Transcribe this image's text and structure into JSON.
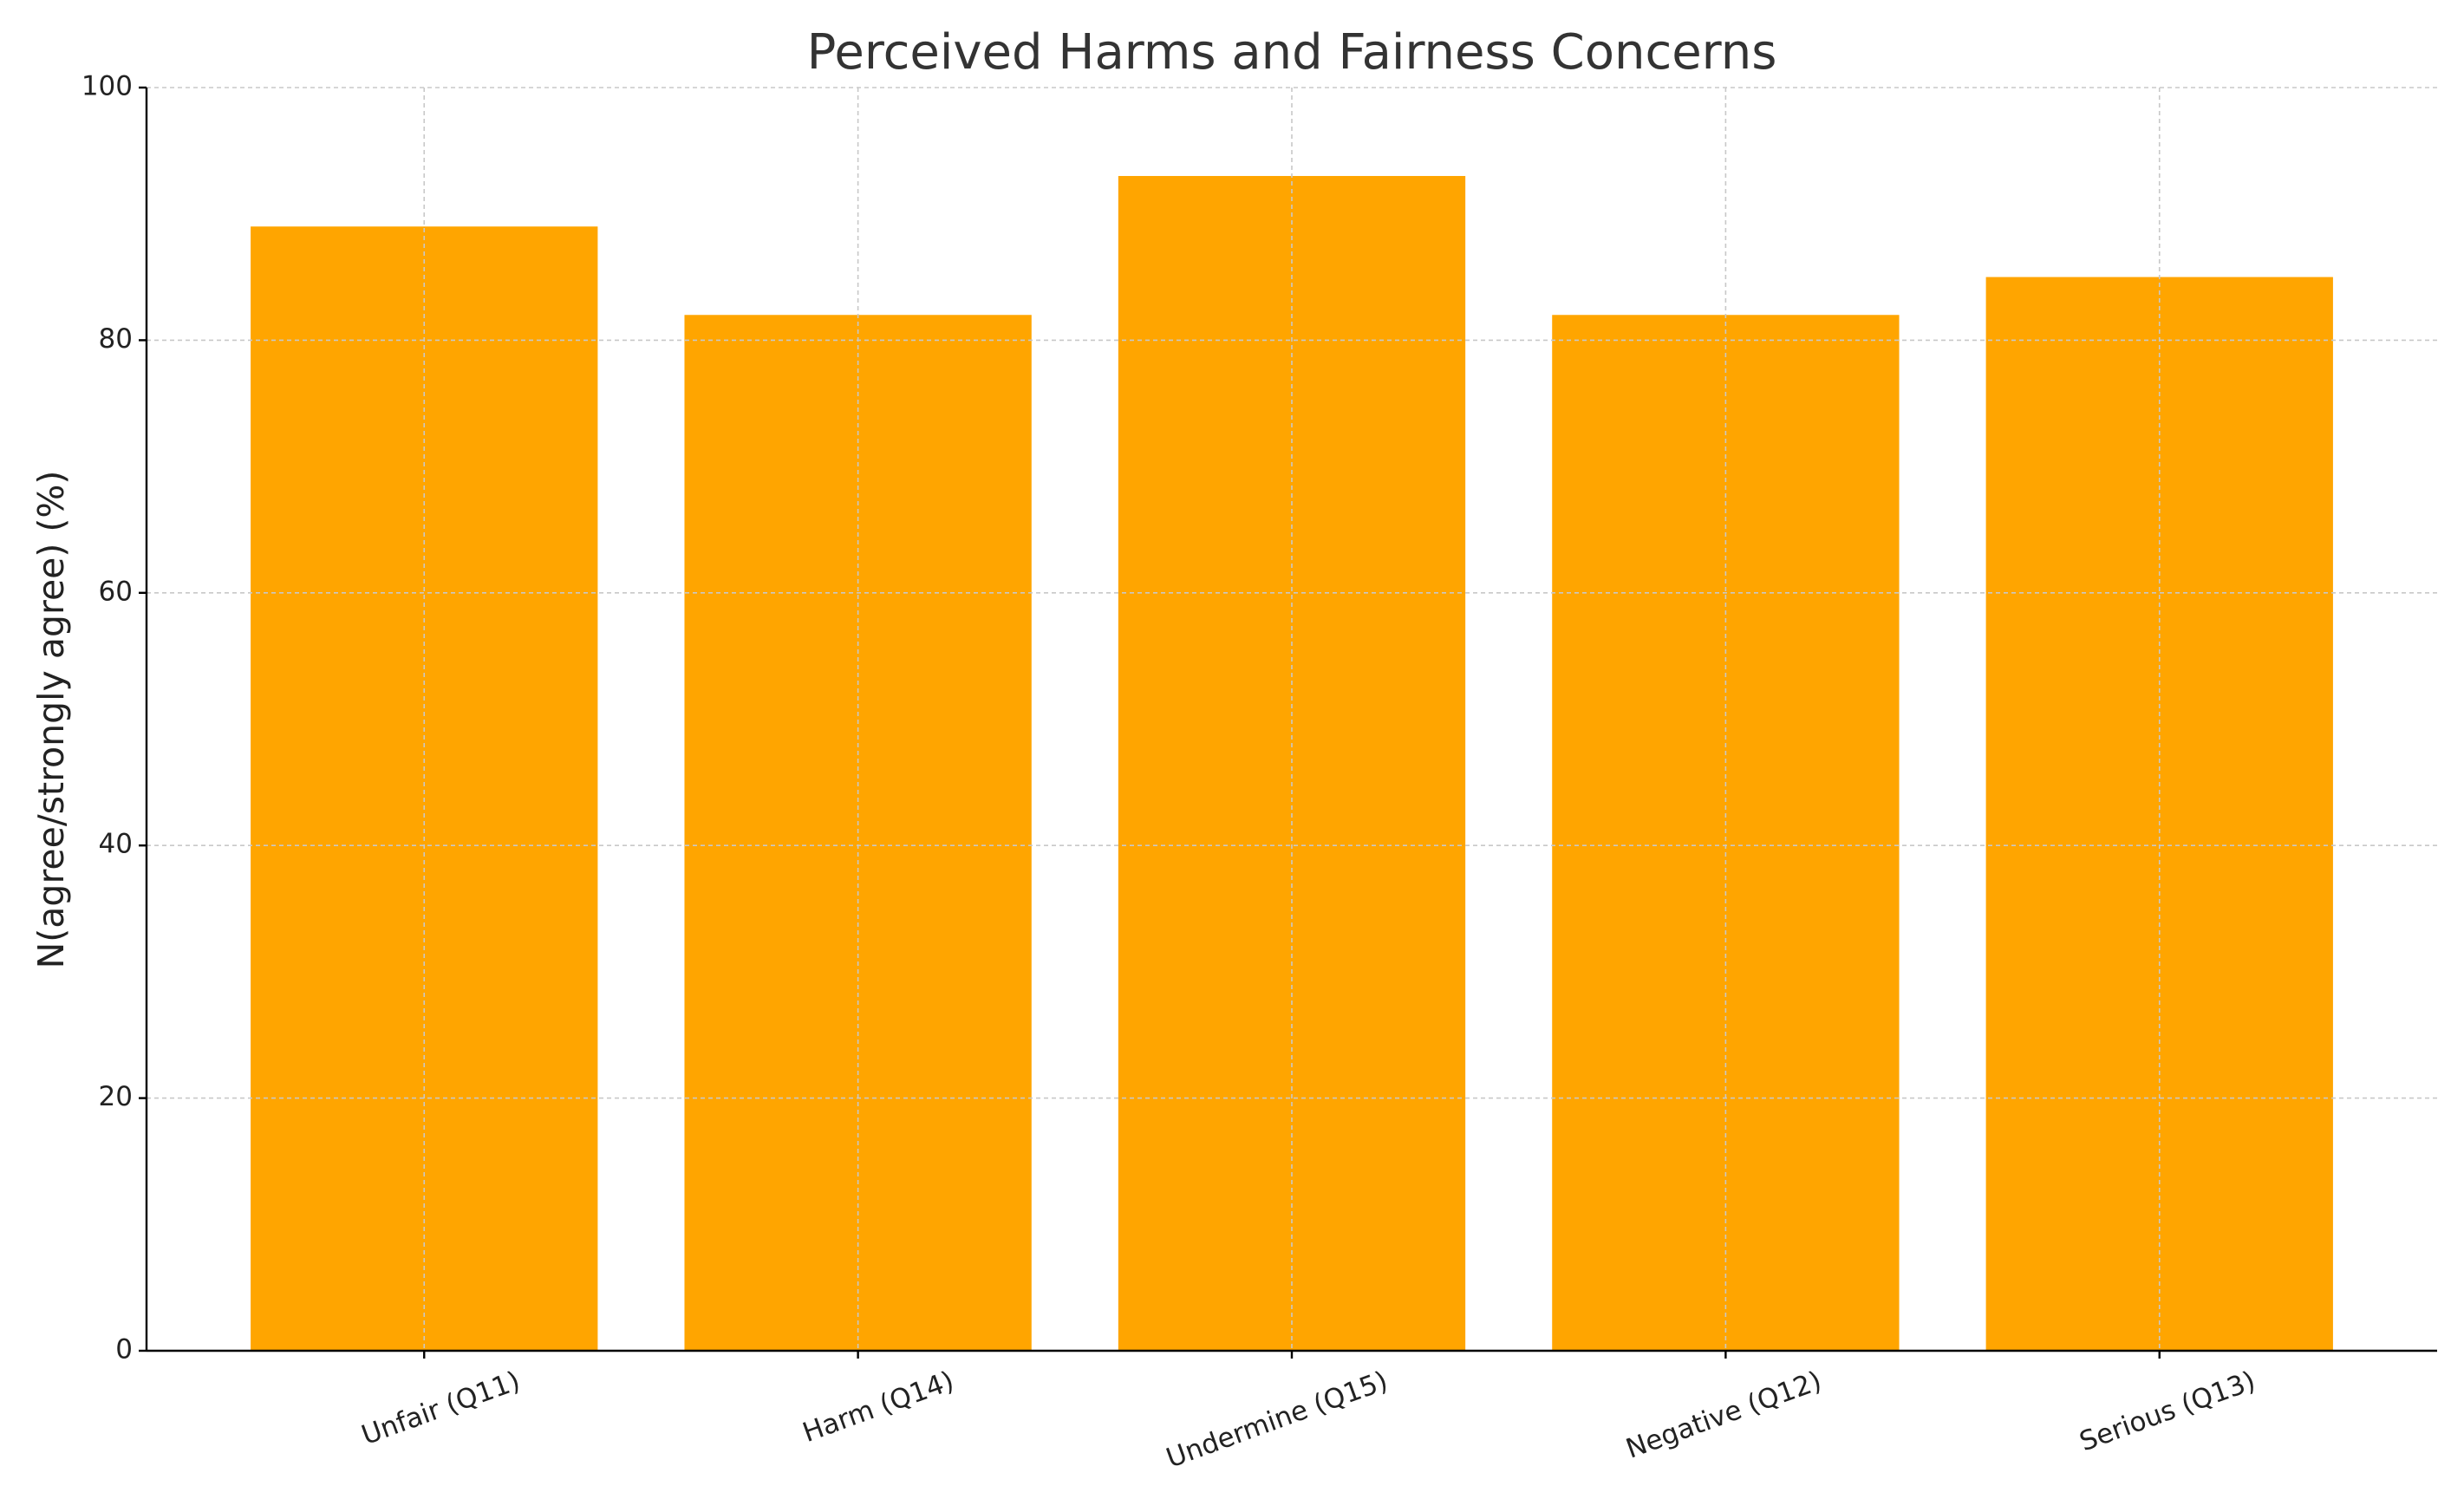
{
  "chart_data": {
    "type": "bar",
    "title": "Perceived Harms and Fairness Concerns",
    "ylabel": "N(agree/strongly agree) (%)",
    "categories": [
      "Unfair (Q11)",
      "Harm (Q14)",
      "Undermine (Q15)",
      "Negative (Q12)",
      "Serious (Q13)"
    ],
    "values": [
      89,
      82,
      93,
      82,
      85
    ],
    "color": "#ffa500",
    "ylim": [
      0,
      100
    ],
    "yticks": [
      0,
      20,
      40,
      60,
      80,
      100
    ],
    "grid": true
  }
}
